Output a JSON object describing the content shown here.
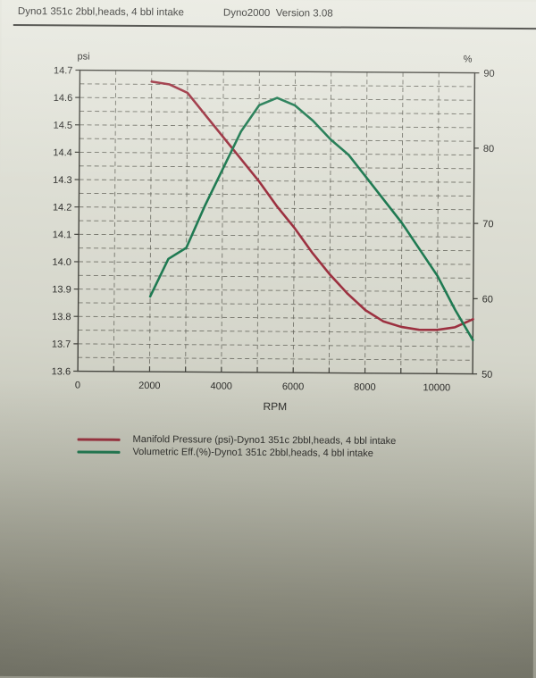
{
  "header": {
    "title_left": "Dyno1 351c 2bbl,heads, 4 bbl intake",
    "title_right": "Dyno2000  Version 3.08"
  },
  "chart_data": {
    "type": "line",
    "title": "",
    "xlabel": "RPM",
    "y_left_label": "psi",
    "y_right_label": "%",
    "x_range": [
      0,
      11000
    ],
    "x_tick_step": 1000,
    "x_labeled_ticks": [
      0,
      2000,
      4000,
      6000,
      8000,
      10000
    ],
    "y_left_range": [
      13.6,
      14.7
    ],
    "y_left_tick_step": 0.1,
    "y_left_minor_step": 0.05,
    "y_right_range": [
      50,
      90
    ],
    "y_right_tick_step": 10,
    "grid": "dashed",
    "legend_position": "bottom-left",
    "x": [
      2000,
      2500,
      3000,
      3500,
      4000,
      4500,
      5000,
      5500,
      6000,
      6500,
      7000,
      7500,
      8000,
      8500,
      9000,
      9500,
      10000,
      10500,
      11000
    ],
    "series": [
      {
        "name": "Manifold Pressure (psi)-Dyno1 351c 2bbl,heads, 4 bbl intake",
        "axis": "left",
        "unit": "psi",
        "color": "#9c3140",
        "values": [
          14.66,
          14.65,
          14.62,
          14.54,
          14.46,
          14.38,
          14.3,
          14.21,
          14.13,
          14.04,
          13.96,
          13.89,
          13.83,
          13.79,
          13.77,
          13.76,
          13.76,
          13.77,
          13.8
        ]
      },
      {
        "name": "Volumetric Eff.(%)-Dyno1 351c 2bbl,heads, 4 bbl intake",
        "axis": "right",
        "unit": "%",
        "color": "#1f7a52",
        "values": [
          60,
          65,
          66.5,
          72,
          77,
          82,
          85.5,
          86.5,
          85.5,
          83.5,
          81,
          79,
          76,
          73,
          70,
          66.5,
          63,
          58.5,
          54.5
        ]
      }
    ]
  },
  "legend": {
    "items": [
      {
        "label": "Manifold Pressure (psi)-Dyno1 351c 2bbl,heads, 4 bbl intake",
        "color": "#9c3140"
      },
      {
        "label": "Volumetric Eff.(%)-Dyno1 351c 2bbl,heads, 4 bbl intake",
        "color": "#1f7a52"
      }
    ]
  }
}
